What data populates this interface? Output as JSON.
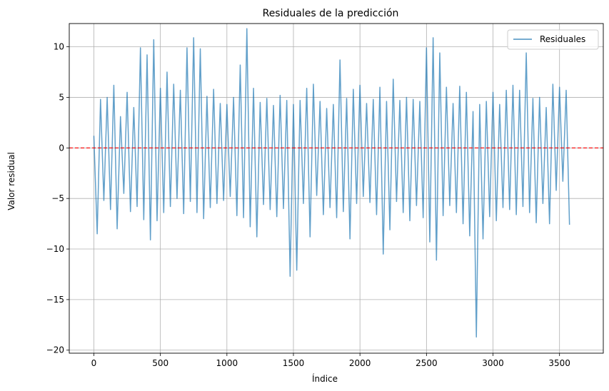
{
  "chart_data": {
    "type": "line",
    "title": "Residuales de la predicción",
    "xlabel": "Índice",
    "ylabel": "Valor residual",
    "xlim": [
      -185,
      3829
    ],
    "ylim": [
      -20.3,
      12.3
    ],
    "xticks": [
      0,
      500,
      1000,
      1500,
      2000,
      2500,
      3000,
      3500
    ],
    "xtick_labels": [
      "0",
      "500",
      "1000",
      "1500",
      "2000",
      "2500",
      "3000",
      "3500"
    ],
    "yticks": [
      10,
      5,
      0,
      -5,
      -10,
      -15,
      -20
    ],
    "ytick_labels": [
      "10",
      "5",
      "0",
      "−5",
      "−10",
      "−15",
      "−20"
    ],
    "grid": true,
    "legend_position": "top-right",
    "reference_line": {
      "y": 0,
      "color": "#ff0000",
      "style": "dashed"
    },
    "series": [
      {
        "name": "Residuales",
        "color": "#1f77b4",
        "opacity": 0.7,
        "x_start": 0,
        "x_step": 25,
        "values": [
          1.2,
          -8.5,
          4.8,
          -5.2,
          5.0,
          -6.1,
          6.2,
          -8.0,
          3.1,
          -4.5,
          5.5,
          -6.3,
          4.0,
          -5.8,
          9.9,
          -7.1,
          9.2,
          -9.1,
          10.7,
          -7.2,
          5.9,
          -6.4,
          7.5,
          -5.8,
          6.3,
          -5.0,
          5.7,
          -6.5,
          9.9,
          -5.3,
          10.9,
          -6.4,
          9.8,
          -7.0,
          5.1,
          -5.9,
          5.8,
          -5.5,
          4.4,
          -5.2,
          4.3,
          -4.8,
          5.0,
          -6.7,
          8.2,
          -6.9,
          11.8,
          -7.8,
          5.9,
          -8.8,
          4.5,
          -5.6,
          4.9,
          -6.1,
          4.2,
          -6.8,
          5.2,
          -6.0,
          4.7,
          -12.7,
          4.3,
          -12.1,
          4.7,
          -5.5,
          5.9,
          -8.8,
          6.3,
          -4.7,
          4.6,
          -6.6,
          3.9,
          -5.9,
          4.3,
          -6.9,
          8.7,
          -6.3,
          4.9,
          -9.0,
          5.8,
          -5.5,
          6.2,
          -4.8,
          4.4,
          -5.4,
          4.8,
          -6.6,
          6.0,
          -10.5,
          4.6,
          -8.1,
          6.8,
          -5.3,
          4.7,
          -6.4,
          5.0,
          -7.2,
          4.8,
          -5.7,
          4.6,
          -6.9,
          9.9,
          -9.3,
          10.9,
          -11.1,
          9.4,
          -6.7,
          6.0,
          -5.7,
          4.4,
          -6.4,
          6.1,
          -7.5,
          5.5,
          -8.7,
          3.6,
          -18.7,
          4.3,
          -9.0,
          4.6,
          -6.8,
          5.5,
          -7.2,
          4.3,
          -5.9,
          5.7,
          -6.1,
          6.2,
          -6.6,
          5.7,
          -5.8,
          9.4,
          -6.4,
          4.9,
          -7.4,
          5.0,
          -5.5,
          4.0,
          -7.5,
          6.3,
          -4.2,
          6.0,
          -3.3,
          5.7,
          -7.6
        ]
      }
    ]
  }
}
